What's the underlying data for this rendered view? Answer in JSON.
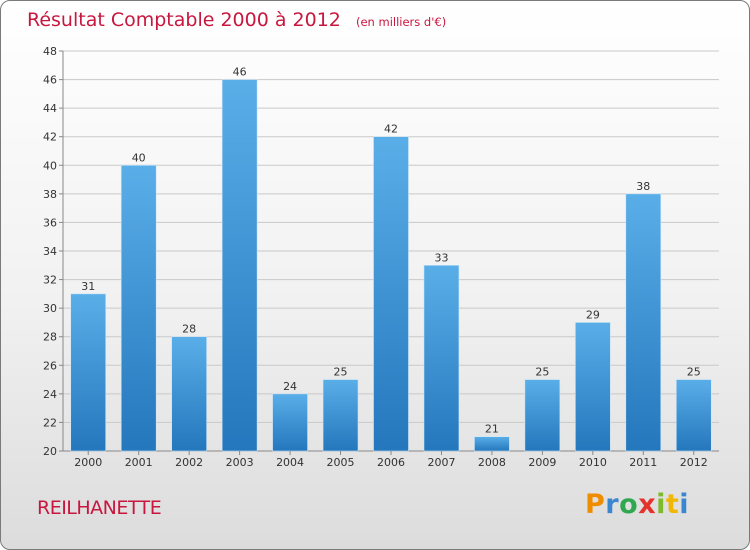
{
  "chart_data": {
    "type": "bar",
    "title": "Résultat Comptable 2000 à 2012",
    "subtitle": "(en milliers d'€)",
    "categories": [
      "2000",
      "2001",
      "2002",
      "2003",
      "2004",
      "2005",
      "2006",
      "2007",
      "2008",
      "2009",
      "2010",
      "2011",
      "2012"
    ],
    "values": [
      31,
      40,
      28,
      46,
      24,
      25,
      42,
      33,
      21,
      25,
      29,
      38,
      25
    ],
    "ylim": [
      20,
      48
    ],
    "yticks": [
      20,
      22,
      24,
      26,
      28,
      30,
      32,
      34,
      36,
      38,
      40,
      42,
      44,
      46,
      48
    ],
    "xlabel": "",
    "ylabel": "",
    "grid": true,
    "colors": {
      "bar_top": "#5aaee8",
      "bar_bottom": "#2477bc",
      "title": "#c8173f"
    }
  },
  "commune": "REILHANETTE",
  "brand": {
    "letters": [
      "P",
      "r",
      "o",
      "x",
      "i",
      "t",
      "i"
    ],
    "colors": [
      "#f08c00",
      "#3a87d0",
      "#2fa84f",
      "#e5322d",
      "#7fba2c",
      "#f2b705",
      "#3a87d0"
    ]
  }
}
